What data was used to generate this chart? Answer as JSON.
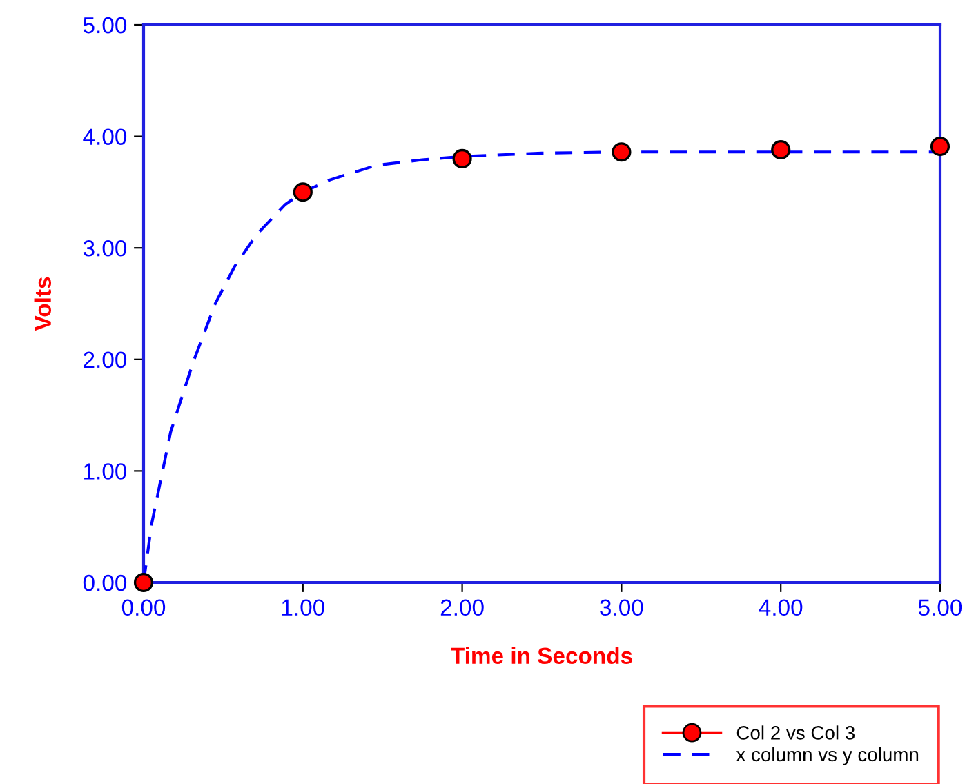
{
  "chart_data": {
    "type": "scatter",
    "xlabel": "Time in Seconds",
    "ylabel": "Volts",
    "xlim": [
      0,
      5
    ],
    "ylim": [
      0,
      5
    ],
    "xticks": [
      {
        "value": 0,
        "label": "0.00"
      },
      {
        "value": 1,
        "label": "1.00"
      },
      {
        "value": 2,
        "label": "2.00"
      },
      {
        "value": 3,
        "label": "3.00"
      },
      {
        "value": 4,
        "label": "4.00"
      },
      {
        "value": 5,
        "label": "5.00"
      }
    ],
    "yticks": [
      {
        "value": 0,
        "label": "0.00"
      },
      {
        "value": 1,
        "label": "1.00"
      },
      {
        "value": 2,
        "label": "2.00"
      },
      {
        "value": 3,
        "label": "3.00"
      },
      {
        "value": 4,
        "label": "4.00"
      },
      {
        "value": 5,
        "label": "5.00"
      }
    ],
    "grid": false,
    "legend": "bottom right",
    "series": [
      {
        "name": "Col 2 vs Col 3",
        "color": "#ff0000",
        "marker": "circle",
        "x": [
          0,
          1,
          2,
          3,
          4,
          5
        ],
        "values": [
          0,
          3.5,
          3.8,
          3.86,
          3.88,
          3.91
        ]
      },
      {
        "name": "x column vs y column",
        "type": "line",
        "color": "#0000ff",
        "line_style": "dashed",
        "marker": "none",
        "x": [
          0,
          0.05,
          0.17,
          0.31,
          0.45,
          0.57,
          0.71,
          0.89,
          1.0,
          1.17,
          1.46,
          1.75,
          2.0,
          2.5,
          3.0,
          4.0,
          5.0
        ],
        "values": [
          0,
          0.52,
          1.35,
          1.97,
          2.5,
          2.83,
          3.12,
          3.39,
          3.5,
          3.61,
          3.74,
          3.79,
          3.82,
          3.85,
          3.86,
          3.86,
          3.86
        ]
      }
    ]
  }
}
